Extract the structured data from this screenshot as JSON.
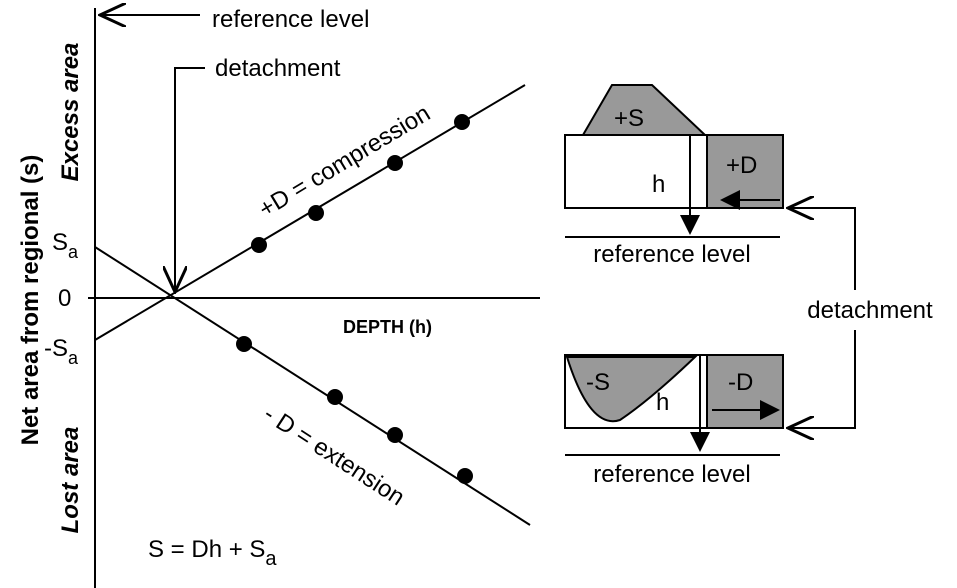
{
  "axis": {
    "y_label": "Net area from regional (s)",
    "excess": "Excess area",
    "lost": "Lost area",
    "x_label": "DEPTH (h)",
    "ticks": [
      {
        "main": "S",
        "sub": "a"
      },
      {
        "main": "0"
      },
      {
        "main": "-S",
        "sub": "a"
      }
    ]
  },
  "annotations": {
    "reference_level": "reference level",
    "detachment": "detachment"
  },
  "lines": {
    "compression": "+D = compression",
    "extension": "- D = extension"
  },
  "equation": {
    "main": "S = Dh + S",
    "sub": "a"
  },
  "insets": {
    "top": {
      "s": "+S",
      "d": "+D",
      "h": "h",
      "reference": "reference level"
    },
    "bottom": {
      "s": "-S",
      "d": "-D",
      "h": "h",
      "reference": "reference level"
    },
    "detachment": "detachment"
  }
}
